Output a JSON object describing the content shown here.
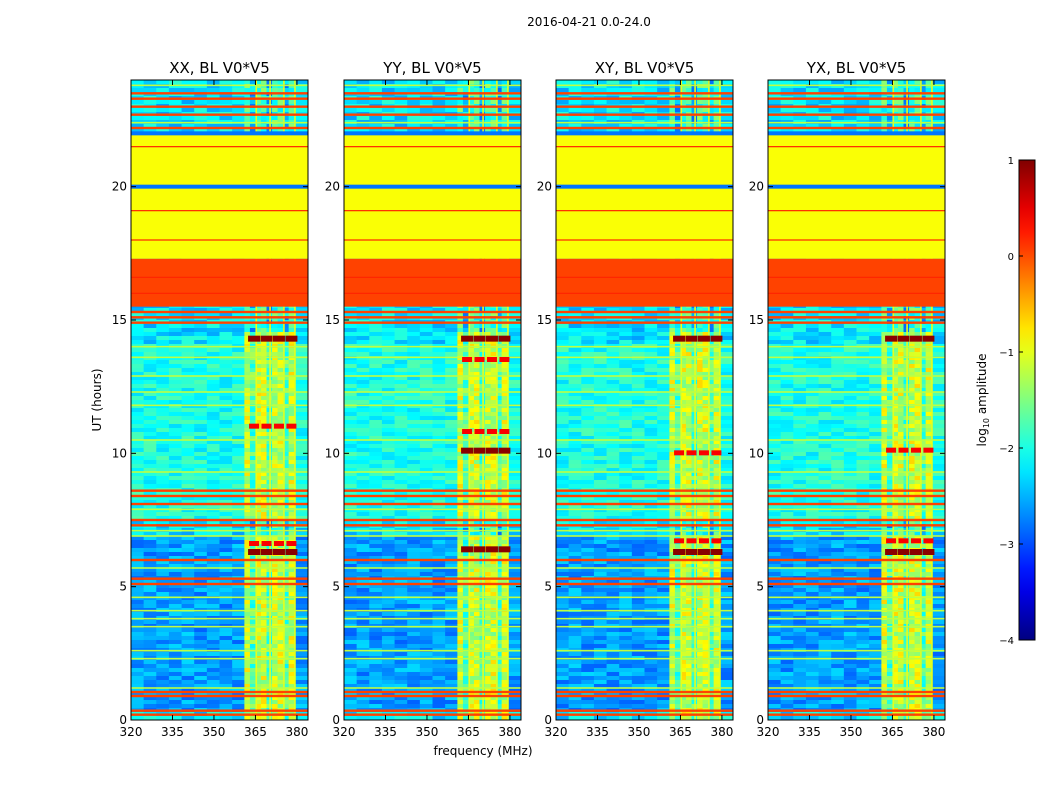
{
  "chart_data": {
    "type": "heatmap",
    "suptitle": "2016-04-21 0.0-24.0",
    "xlabel": "frequency (MHz)",
    "ylabel": "UT (hours)",
    "xlim": [
      320,
      384
    ],
    "ylim": [
      0,
      24
    ],
    "xticks": [
      320,
      335,
      350,
      365,
      380
    ],
    "yticks": [
      0,
      5,
      10,
      15,
      20
    ],
    "panels": [
      {
        "title": "XX, BL V0*V5",
        "hot_rows": [
          6.3,
          14.3
        ],
        "bright_rows": [
          6.6,
          11.0
        ]
      },
      {
        "title": "YY, BL V0*V5",
        "hot_rows": [
          6.4,
          10.1,
          14.3
        ],
        "bright_rows": [
          10.8,
          13.5
        ]
      },
      {
        "title": "XY, BL V0*V5",
        "hot_rows": [
          6.3,
          14.3
        ],
        "bright_rows": [
          6.7,
          10.0
        ]
      },
      {
        "title": "YX, BL V0*V5",
        "hot_rows": [
          6.3,
          14.3
        ],
        "bright_rows": [
          6.7,
          10.1
        ]
      }
    ],
    "colorbar": {
      "label_base": "log",
      "label_sub": "10",
      "label_rest": " amplitude",
      "range": [
        -4,
        1
      ],
      "ticks": [
        "1",
        "0",
        "−1",
        "−2",
        "−3",
        "−4"
      ],
      "colormap": "jet"
    },
    "rfi_band_mhz": [
      361,
      379
    ],
    "flagged_blocks_ut": [
      {
        "range": [
          15.5,
          17.3
        ],
        "log_amp": 0.05
      },
      {
        "range": [
          17.3,
          22.0
        ],
        "log_amp": -0.9
      }
    ]
  }
}
